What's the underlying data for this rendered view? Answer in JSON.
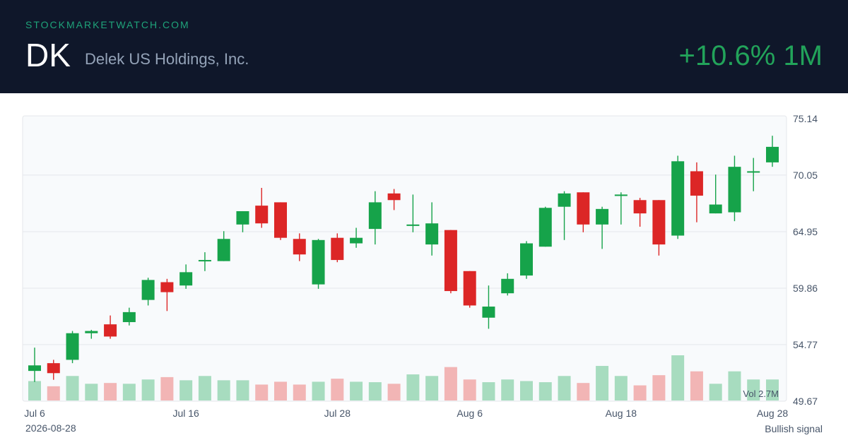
{
  "header": {
    "site": "STOCKMARKETWATCH.COM",
    "ticker": "DK",
    "company": "Delek US Holdings, Inc.",
    "change": "+10.6% 1M"
  },
  "footer": {
    "date": "2026-08-28",
    "signal": "Bullish signal"
  },
  "colors": {
    "up": "#16a34a",
    "down": "#dc2626",
    "up_volume": "#a7dcbf",
    "down_volume": "#f2b5b5",
    "header_bg": "#0f172a",
    "change": "#22a35a"
  },
  "chart_data": {
    "type": "candlestick",
    "title": "",
    "xlabel": "",
    "ylabel": "",
    "ylim": [
      49.67,
      75.14
    ],
    "y_ticks": [
      "75.14",
      "70.05",
      "64.95",
      "59.86",
      "54.77",
      "49.67"
    ],
    "x_ticks": [
      {
        "label": "Jul 6",
        "index": 0
      },
      {
        "label": "Jul 16",
        "index": 8
      },
      {
        "label": "Jul 28",
        "index": 16
      },
      {
        "label": "Aug 6",
        "index": 23
      },
      {
        "label": "Aug 18",
        "index": 31
      },
      {
        "label": "Aug 28",
        "index": 39
      }
    ],
    "volume_label": "Vol 2.7M",
    "grid": true,
    "candles": [
      {
        "o": 52.4,
        "h": 54.5,
        "l": 51.4,
        "c": 52.9,
        "v": 1.72
      },
      {
        "o": 53.1,
        "h": 53.4,
        "l": 51.6,
        "c": 52.2,
        "v": 1.26
      },
      {
        "o": 53.4,
        "h": 56.0,
        "l": 53.1,
        "c": 55.8,
        "v": 2.17
      },
      {
        "o": 55.8,
        "h": 56.1,
        "l": 55.3,
        "c": 56.0,
        "v": 1.48
      },
      {
        "o": 56.6,
        "h": 57.4,
        "l": 55.3,
        "c": 55.5,
        "v": 1.55
      },
      {
        "o": 56.8,
        "h": 58.1,
        "l": 56.5,
        "c": 57.7,
        "v": 1.48
      },
      {
        "o": 58.8,
        "h": 60.8,
        "l": 58.3,
        "c": 60.6,
        "v": 1.86
      },
      {
        "o": 60.4,
        "h": 60.7,
        "l": 57.8,
        "c": 59.5,
        "v": 2.07
      },
      {
        "o": 60.1,
        "h": 62.0,
        "l": 59.8,
        "c": 61.3,
        "v": 1.79
      },
      {
        "o": 62.4,
        "h": 63.1,
        "l": 61.4,
        "c": 62.4,
        "v": 2.17
      },
      {
        "o": 62.3,
        "h": 65.0,
        "l": 62.3,
        "c": 64.3,
        "v": 1.79
      },
      {
        "o": 65.6,
        "h": 66.8,
        "l": 64.9,
        "c": 66.8,
        "v": 1.79
      },
      {
        "o": 67.3,
        "h": 68.9,
        "l": 65.3,
        "c": 65.7,
        "v": 1.41
      },
      {
        "o": 67.6,
        "h": 67.6,
        "l": 64.2,
        "c": 64.4,
        "v": 1.66
      },
      {
        "o": 64.3,
        "h": 64.8,
        "l": 62.3,
        "c": 62.9,
        "v": 1.41
      },
      {
        "o": 60.2,
        "h": 64.3,
        "l": 59.8,
        "c": 64.2,
        "v": 1.66
      },
      {
        "o": 64.4,
        "h": 64.8,
        "l": 62.2,
        "c": 62.4,
        "v": 1.93
      },
      {
        "o": 63.9,
        "h": 65.3,
        "l": 63.5,
        "c": 64.4,
        "v": 1.66
      },
      {
        "o": 65.2,
        "h": 68.6,
        "l": 63.8,
        "c": 67.6,
        "v": 1.62
      },
      {
        "o": 68.4,
        "h": 68.8,
        "l": 66.9,
        "c": 67.8,
        "v": 1.48
      },
      {
        "o": 65.6,
        "h": 68.3,
        "l": 64.9,
        "c": 65.6,
        "v": 2.31
      },
      {
        "o": 63.8,
        "h": 67.6,
        "l": 62.8,
        "c": 65.7,
        "v": 2.17
      },
      {
        "o": 65.1,
        "h": 65.1,
        "l": 59.4,
        "c": 59.6,
        "v": 2.96
      },
      {
        "o": 61.4,
        "h": 61.4,
        "l": 58.1,
        "c": 58.3,
        "v": 1.86
      },
      {
        "o": 57.2,
        "h": 60.1,
        "l": 56.2,
        "c": 58.2,
        "v": 1.62
      },
      {
        "o": 59.4,
        "h": 61.2,
        "l": 59.2,
        "c": 60.7,
        "v": 1.86
      },
      {
        "o": 61.0,
        "h": 64.1,
        "l": 60.7,
        "c": 63.9,
        "v": 1.72
      },
      {
        "o": 63.6,
        "h": 67.2,
        "l": 63.6,
        "c": 67.1,
        "v": 1.62
      },
      {
        "o": 67.2,
        "h": 68.6,
        "l": 64.2,
        "c": 68.4,
        "v": 2.17
      },
      {
        "o": 68.5,
        "h": 68.5,
        "l": 64.9,
        "c": 65.6,
        "v": 1.55
      },
      {
        "o": 65.6,
        "h": 67.2,
        "l": 63.4,
        "c": 67.0,
        "v": 3.06
      },
      {
        "o": 68.3,
        "h": 68.5,
        "l": 65.6,
        "c": 68.3,
        "v": 2.17
      },
      {
        "o": 67.8,
        "h": 68.0,
        "l": 65.4,
        "c": 66.6,
        "v": 1.34
      },
      {
        "o": 67.8,
        "h": 67.8,
        "l": 62.8,
        "c": 63.8,
        "v": 2.24
      },
      {
        "o": 64.6,
        "h": 71.8,
        "l": 64.3,
        "c": 71.3,
        "v": 4.0
      },
      {
        "o": 70.4,
        "h": 71.2,
        "l": 65.8,
        "c": 68.2,
        "v": 2.58
      },
      {
        "o": 66.6,
        "h": 70.1,
        "l": 66.6,
        "c": 67.4,
        "v": 1.48
      },
      {
        "o": 66.7,
        "h": 71.8,
        "l": 65.9,
        "c": 70.8,
        "v": 2.58
      },
      {
        "o": 70.4,
        "h": 71.6,
        "l": 68.6,
        "c": 70.4,
        "v": 1.86
      },
      {
        "o": 71.2,
        "h": 73.6,
        "l": 70.8,
        "c": 72.6,
        "v": 1.86
      }
    ]
  }
}
